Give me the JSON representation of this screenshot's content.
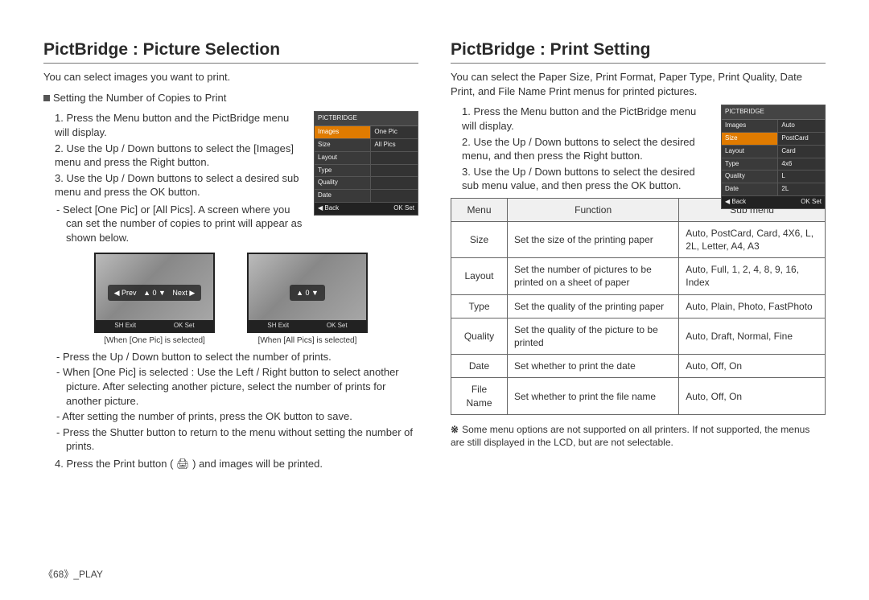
{
  "left": {
    "title": "PictBridge : Picture Selection",
    "intro": "You can select images you want to print.",
    "subhead": "Setting the Number of Copies to Print",
    "steps": {
      "s1": "1. Press the Menu button and the PictBridge menu will display.",
      "s2": "2. Use the Up / Down buttons to select the [Images] menu and press the Right button.",
      "s3": "3. Use the Up / Down buttons to select a desired sub menu and press the OK button.",
      "s3a": "Select [One Pic] or [All Pics]. A screen where you can set the number of copies to print will appear as shown below."
    },
    "menuBox": {
      "header": "PICTBRIDGE",
      "rows": [
        {
          "k": "Images",
          "v": "One Pic",
          "sel": true
        },
        {
          "k": "Size",
          "v": "All Pics"
        },
        {
          "k": "Layout",
          "v": ""
        },
        {
          "k": "Type",
          "v": ""
        },
        {
          "k": "Quality",
          "v": ""
        },
        {
          "k": "Date",
          "v": ""
        }
      ],
      "footL": "◀  Back",
      "footR": "OK  Set"
    },
    "photoA": {
      "ctrl": "▲ 0 ▼",
      "prev": "◀ Prev",
      "next": "Next ▶",
      "barL": "SH Exit",
      "barR": "OK Set",
      "cap": "[When [One Pic] is selected]"
    },
    "photoB": {
      "ctrl": "▲ 0 ▼",
      "barL": "SH Exit",
      "barR": "OK Set",
      "cap": "[When [All Pics] is selected]"
    },
    "after": {
      "a1": "Press the Up / Down button to select the number of prints.",
      "a2": "When [One Pic] is selected : Use the Left / Right button to select another picture. After selecting another picture, select the number of prints for another picture.",
      "a3": "After setting the number of prints, press the OK button to save.",
      "a4": "Press the Shutter button to return to the menu without setting the number of prints.",
      "s4": "4. Press the Print button ( 🖨 ) and images will be printed."
    }
  },
  "right": {
    "title": "PictBridge : Print Setting",
    "intro": "You can select the Paper Size, Print Format, Paper Type, Print Quality, Date Print, and File Name Print menus for printed pictures.",
    "steps": {
      "s1": "1. Press the Menu button and the PictBridge menu will display.",
      "s2": "2. Use the Up / Down buttons to select the desired menu, and then press the Right button.",
      "s3": "3. Use the Up / Down buttons to select the desired sub menu value, and then press the OK button."
    },
    "menuBox": {
      "header": "PICTBRIDGE",
      "rows": [
        {
          "k": "Images",
          "v": "Auto"
        },
        {
          "k": "Size",
          "v": "PostCard",
          "sel": true
        },
        {
          "k": "Layout",
          "v": "Card"
        },
        {
          "k": "Type",
          "v": "4x6"
        },
        {
          "k": "Quality",
          "v": "L"
        },
        {
          "k": "Date",
          "v": "2L"
        }
      ],
      "footL": "◀  Back",
      "footR": "OK  Set"
    },
    "table": {
      "h1": "Menu",
      "h2": "Function",
      "h3": "Sub menu",
      "rows": [
        {
          "m": "Size",
          "f": "Set the size of the printing paper",
          "s": "Auto, PostCard, Card, 4X6, L, 2L, Letter, A4, A3"
        },
        {
          "m": "Layout",
          "f": "Set the number of pictures to be printed on a sheet of paper",
          "s": "Auto, Full, 1, 2, 4, 8, 9, 16, Index"
        },
        {
          "m": "Type",
          "f": "Set the quality of the printing paper",
          "s": "Auto, Plain, Photo, FastPhoto"
        },
        {
          "m": "Quality",
          "f": "Set the quality of the picture to be printed",
          "s": "Auto, Draft, Normal, Fine"
        },
        {
          "m": "Date",
          "f": "Set whether to print the date",
          "s": "Auto, Off, On"
        },
        {
          "m": "File Name",
          "f": "Set whether to print the file name",
          "s": "Auto, Off, On"
        }
      ]
    },
    "note": "Some menu options are not supported on all printers. If not supported, the menus are still displayed in the LCD, but are not selectable."
  },
  "footer": "《68》_PLAY"
}
